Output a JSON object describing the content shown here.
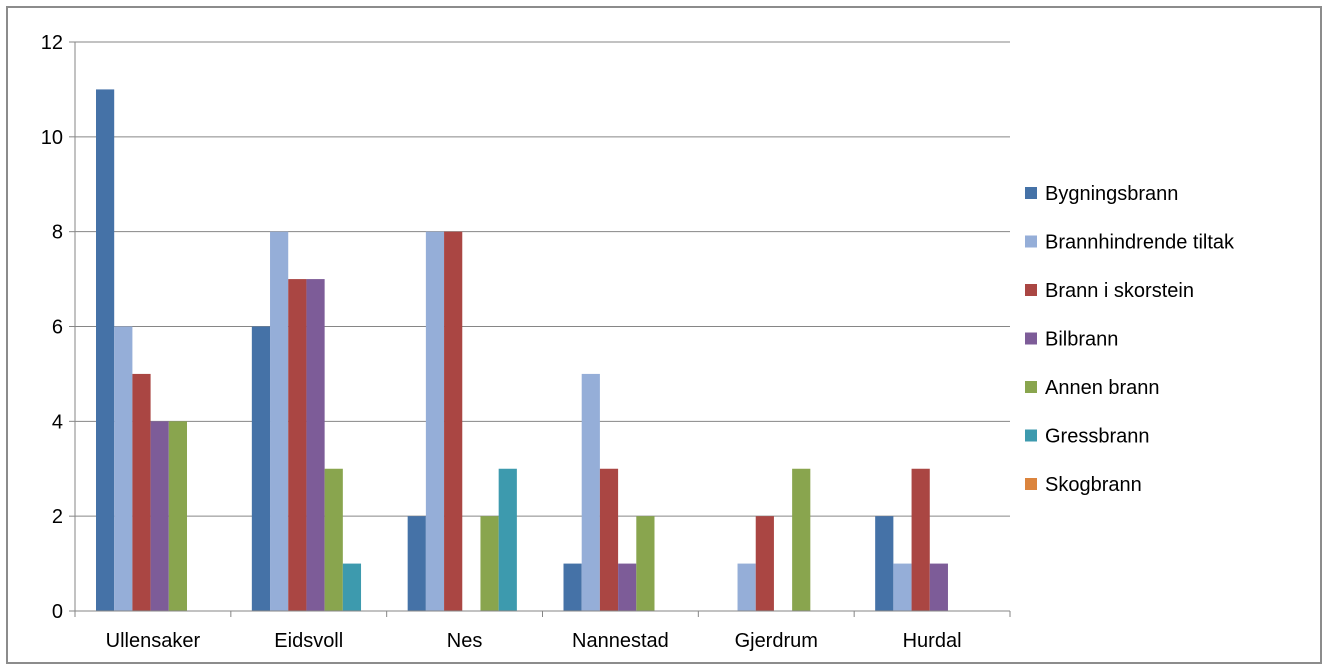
{
  "chart_data": {
    "type": "bar",
    "categories": [
      "Ullensaker",
      "Eidsvoll",
      "Nes",
      "Nannestad",
      "Gjerdrum",
      "Hurdal"
    ],
    "series": [
      {
        "name": "Bygningsbrann",
        "color": "#4572A7",
        "values": [
          11,
          6,
          2,
          1,
          0,
          2
        ]
      },
      {
        "name": "Brannhindrende tiltak",
        "color": "#95AED8",
        "values": [
          6,
          8,
          8,
          5,
          1,
          1
        ]
      },
      {
        "name": "Brann i skorstein",
        "color": "#AA4643",
        "values": [
          5,
          7,
          8,
          3,
          2,
          3
        ]
      },
      {
        "name": "Bilbrann",
        "color": "#7D5C98",
        "values": [
          4,
          7,
          0,
          1,
          0,
          1
        ]
      },
      {
        "name": "Annen brann",
        "color": "#89A54E",
        "values": [
          4,
          3,
          2,
          2,
          3,
          0
        ]
      },
      {
        "name": "Gressbrann",
        "color": "#3D9AAE",
        "values": [
          0,
          1,
          3,
          0,
          0,
          0
        ]
      },
      {
        "name": "Skogbrann",
        "color": "#DB843D",
        "values": [
          0,
          0,
          0,
          0,
          0,
          0
        ]
      }
    ],
    "yticks": [
      "0",
      "2",
      "4",
      "6",
      "8",
      "10",
      "12"
    ],
    "ylim": [
      0,
      12
    ],
    "grid": true,
    "legend": "right"
  }
}
